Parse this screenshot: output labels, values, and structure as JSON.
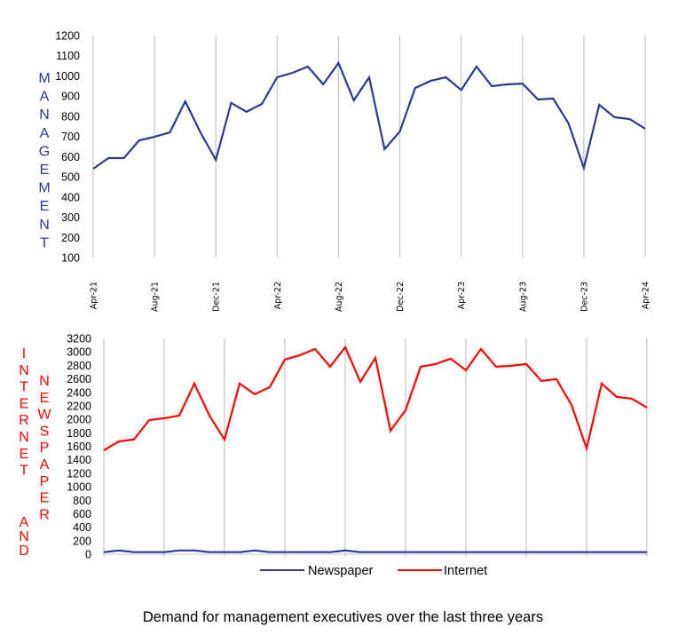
{
  "chart_data": [
    {
      "type": "line",
      "title": "",
      "ylabel": "MANAGEMENT",
      "xlabel": "",
      "ylim": [
        100,
        1200
      ],
      "yticks": [
        100,
        200,
        300,
        400,
        500,
        600,
        700,
        800,
        900,
        1000,
        1100,
        1200
      ],
      "x": [
        "Apr-21",
        "May-21",
        "Jun-21",
        "Jul-21",
        "Aug-21",
        "Sep-21",
        "Oct-21",
        "Nov-21",
        "Dec-21",
        "Jan-22",
        "Feb-22",
        "Mar-22",
        "Apr-22",
        "May-22",
        "Jun-22",
        "Jul-22",
        "Aug-22",
        "Sep-22",
        "Oct-22",
        "Nov-22",
        "Dec-22",
        "Jan-23",
        "Feb-23",
        "Mar-23",
        "Apr-23",
        "May-23",
        "Jun-23",
        "Jul-23",
        "Aug-23",
        "Sep-23",
        "Oct-23",
        "Nov-23",
        "Dec-23",
        "Jan-24",
        "Feb-24",
        "Mar-24",
        "Apr-24"
      ],
      "xtick_labels": [
        "Apr-21",
        "Aug-21",
        "Dec-21",
        "Apr-22",
        "Aug-22",
        "Dec-22",
        "Apr-23",
        "Aug-23",
        "Dec-23",
        "Apr-24"
      ],
      "grid": "vertical",
      "series": [
        {
          "name": "Management",
          "color": "#2B3990",
          "values": [
            540,
            593,
            593,
            681,
            698,
            720,
            874,
            720,
            584,
            866,
            822,
            861,
            993,
            1015,
            1046,
            958,
            1064,
            879,
            993,
            637,
            725,
            940,
            975,
            993,
            930,
            1046,
            949,
            958,
            962,
            883,
            888,
            765,
            544,
            857,
            795,
            786,
            738
          ]
        }
      ]
    },
    {
      "type": "line",
      "title": "",
      "ylabel": "INTERNET AND NEWSPAPER",
      "ylabel_lines": [
        "INTERNET",
        "AND",
        "NEWSPAPER"
      ],
      "xlabel": "",
      "ylim": [
        0,
        3200
      ],
      "yticks": [
        0,
        200,
        400,
        600,
        800,
        1000,
        1200,
        1400,
        1600,
        1800,
        2000,
        2200,
        2400,
        2600,
        2800,
        3000,
        3200
      ],
      "x": [
        "Apr-21",
        "May-21",
        "Jun-21",
        "Jul-21",
        "Aug-21",
        "Sep-21",
        "Oct-21",
        "Nov-21",
        "Dec-21",
        "Jan-22",
        "Feb-22",
        "Mar-22",
        "Apr-22",
        "May-22",
        "Jun-22",
        "Jul-22",
        "Aug-22",
        "Sep-22",
        "Oct-22",
        "Nov-22",
        "Dec-22",
        "Jan-23",
        "Feb-23",
        "Mar-23",
        "Apr-23",
        "May-23",
        "Jun-23",
        "Jul-23",
        "Aug-23",
        "Sep-23",
        "Oct-23",
        "Nov-23",
        "Dec-23",
        "Jan-24",
        "Feb-24",
        "Mar-24",
        "Apr-24"
      ],
      "grid": "vertical",
      "legend_position": "bottom",
      "series": [
        {
          "name": "Newspaper",
          "color": "#2B3990",
          "values": [
            30,
            55,
            30,
            30,
            30,
            55,
            55,
            30,
            30,
            30,
            55,
            30,
            30,
            30,
            30,
            30,
            55,
            30,
            30,
            30,
            30,
            30,
            30,
            30,
            30,
            30,
            30,
            30,
            30,
            30,
            30,
            30,
            30,
            30,
            30,
            30,
            30
          ]
        },
        {
          "name": "Internet",
          "color": "#FF0000",
          "values": [
            1541,
            1673,
            1700,
            1989,
            2016,
            2055,
            2530,
            2055,
            1700,
            2530,
            2372,
            2477,
            2885,
            2951,
            3043,
            2780,
            3070,
            2556,
            2912,
            1831,
            2134,
            2780,
            2820,
            2899,
            2727,
            3043,
            2780,
            2793,
            2820,
            2569,
            2596,
            2213,
            1568,
            2530,
            2332,
            2306,
            2174
          ]
        }
      ]
    }
  ],
  "caption": "Demand for management executives over the last three years"
}
